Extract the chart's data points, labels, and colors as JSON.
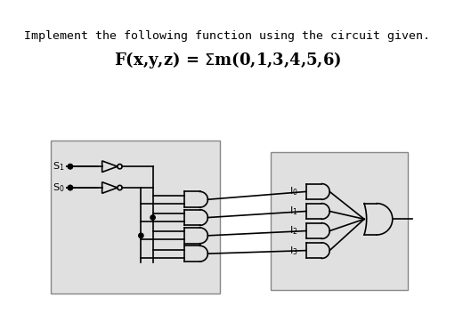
{
  "title_text": "Implement the following function using the circuit given.",
  "formula_text": "F(x,y,z) = Σm(0,1,3,4,5,6)",
  "bg_color": "#ffffff",
  "box1_color": "#d8d8d8",
  "box2_color": "#d8d8d8",
  "line_color": "#000000",
  "title_fontsize": 10,
  "formula_fontsize": 14
}
